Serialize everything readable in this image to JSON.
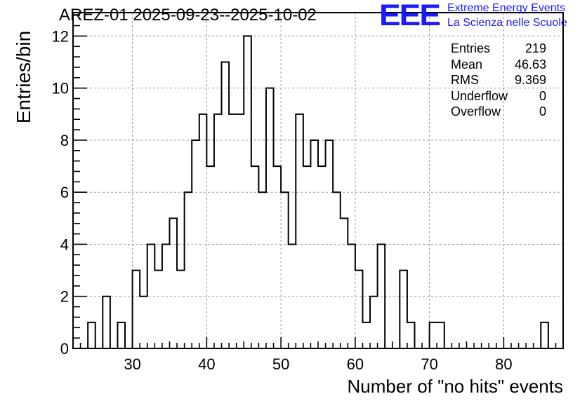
{
  "title": "AREZ-01 2025-09-23--2025-10-02",
  "logo": {
    "mark": "EEE",
    "line1": "Extreme Energy Events",
    "line2": "La Scienza nelle Scuole",
    "color": "#1a1aff"
  },
  "stats": [
    {
      "label": "Entries",
      "value": "219"
    },
    {
      "label": "Mean",
      "value": "46.63"
    },
    {
      "label": "RMS",
      "value": "9.369"
    },
    {
      "label": "Underflow",
      "value": "0"
    },
    {
      "label": "Overflow",
      "value": "0"
    }
  ],
  "chart_data": {
    "type": "bar",
    "title": "AREZ-01 2025-09-23--2025-10-02",
    "xlabel": "Number of \"no hits\" events",
    "ylabel": "Entries/bin",
    "xlim": [
      22,
      88
    ],
    "ylim": [
      0,
      12.9
    ],
    "bin_width": 1,
    "xticks": [
      30,
      40,
      50,
      60,
      70,
      80
    ],
    "yticks": [
      0,
      2,
      4,
      6,
      8,
      10,
      12
    ],
    "grid": true,
    "legend": "none",
    "line_color": "#000000",
    "bins_x": [
      24,
      25,
      26,
      27,
      28,
      29,
      30,
      31,
      32,
      33,
      34,
      35,
      36,
      37,
      38,
      39,
      40,
      41,
      42,
      43,
      44,
      45,
      46,
      47,
      48,
      49,
      50,
      51,
      52,
      53,
      54,
      55,
      56,
      57,
      58,
      59,
      60,
      61,
      62,
      63,
      64,
      65,
      66,
      67,
      68,
      69,
      70,
      71,
      72,
      73,
      74,
      75,
      76,
      77,
      78,
      79,
      80,
      81,
      82,
      83,
      84,
      85
    ],
    "values": [
      1,
      0,
      2,
      0,
      1,
      0,
      3,
      2,
      4,
      3,
      4,
      5,
      3,
      6,
      8,
      9,
      7,
      9,
      11,
      9,
      9,
      12,
      7,
      6,
      10,
      7,
      6,
      4,
      9,
      7,
      8,
      7,
      8,
      6,
      5,
      4,
      3,
      1,
      2,
      4,
      0,
      0,
      3,
      1,
      0,
      0,
      1,
      1,
      0,
      0,
      0,
      0,
      0,
      0,
      0,
      0,
      0,
      0,
      0,
      0,
      0,
      1
    ]
  }
}
